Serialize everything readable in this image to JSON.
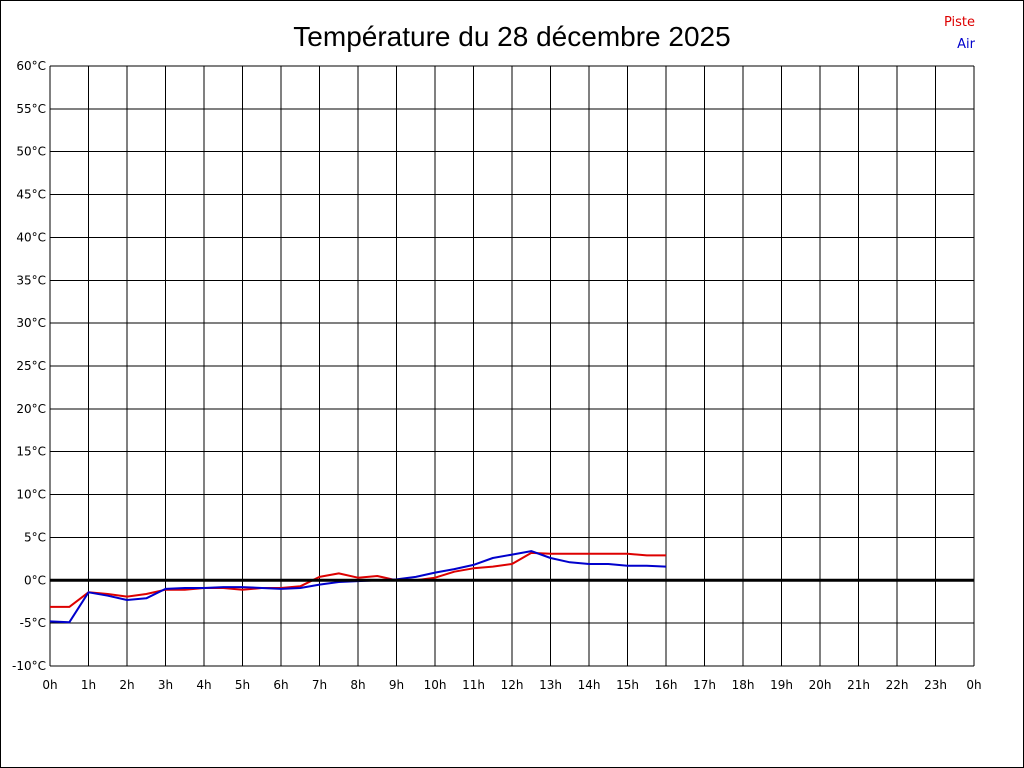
{
  "chart_data": {
    "type": "line",
    "title": "Température du 28 décembre 2025",
    "xlabel": "",
    "ylabel": "",
    "x_ticks": [
      "0h",
      "1h",
      "2h",
      "3h",
      "4h",
      "5h",
      "6h",
      "7h",
      "8h",
      "9h",
      "10h",
      "11h",
      "12h",
      "13h",
      "14h",
      "15h",
      "16h",
      "17h",
      "18h",
      "19h",
      "20h",
      "21h",
      "22h",
      "23h",
      "0h"
    ],
    "y_ticks": [
      "60°C",
      "55°C",
      "50°C",
      "45°C",
      "40°C",
      "35°C",
      "30°C",
      "25°C",
      "20°C",
      "15°C",
      "10°C",
      "5°C",
      "0°C",
      "-5°C",
      "-10°C"
    ],
    "xlim": [
      0,
      24
    ],
    "ylim": [
      -10,
      60
    ],
    "grid": true,
    "zero_line": true,
    "legend_position": "top-right",
    "series": [
      {
        "name": "Piste",
        "color": "#dd0000",
        "x": [
          0,
          0.5,
          1,
          1.5,
          2,
          2.5,
          3,
          3.5,
          4,
          4.5,
          5,
          5.5,
          6,
          6.5,
          7,
          7.5,
          8,
          8.5,
          9,
          9.5,
          10,
          10.5,
          11,
          11.5,
          12,
          12.5,
          13,
          13.5,
          14,
          14.5,
          15,
          15.5,
          16
        ],
        "y": [
          -3.1,
          -3.1,
          -1.4,
          -1.6,
          -1.9,
          -1.6,
          -1.1,
          -1.1,
          -0.9,
          -0.9,
          -1.1,
          -0.9,
          -0.9,
          -0.7,
          0.4,
          0.8,
          0.3,
          0.5,
          0.0,
          0.0,
          0.3,
          1.0,
          1.4,
          1.6,
          1.9,
          3.2,
          3.1,
          3.1,
          3.1,
          3.1,
          3.1,
          2.9,
          2.9
        ]
      },
      {
        "name": "Air",
        "color": "#0000cc",
        "x": [
          0,
          0.5,
          1,
          1.5,
          2,
          2.5,
          3,
          3.5,
          4,
          4.5,
          5,
          5.5,
          6,
          6.5,
          7,
          7.5,
          8,
          8.5,
          9,
          9.5,
          10,
          10.5,
          11,
          11.5,
          12,
          12.5,
          13,
          13.5,
          14,
          14.5,
          15,
          15.5,
          16
        ],
        "y": [
          -4.8,
          -4.9,
          -1.4,
          -1.8,
          -2.3,
          -2.1,
          -1.0,
          -0.9,
          -0.9,
          -0.8,
          -0.8,
          -0.9,
          -1.0,
          -0.9,
          -0.5,
          -0.2,
          -0.1,
          0.0,
          0.1,
          0.4,
          0.9,
          1.3,
          1.8,
          2.6,
          3.0,
          3.4,
          2.6,
          2.1,
          1.9,
          1.9,
          1.7,
          1.7,
          1.6
        ]
      }
    ]
  }
}
